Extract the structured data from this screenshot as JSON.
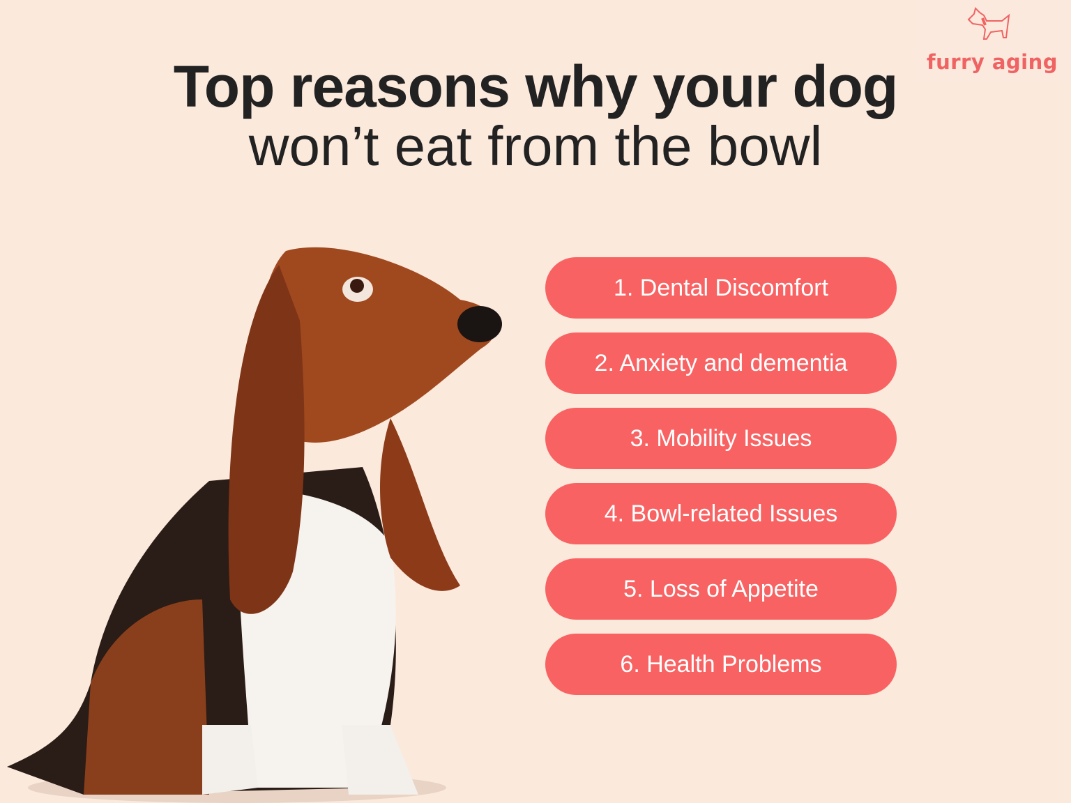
{
  "brand": {
    "name": "furry aging",
    "icon": "dog-outline-icon",
    "color": "#ef6363"
  },
  "title": {
    "line1": "Top reasons why your dog",
    "line2": "won’t eat from the bowl"
  },
  "reasons": [
    {
      "label": "1. Dental Discomfort"
    },
    {
      "label": "2. Anxiety and dementia"
    },
    {
      "label": "3. Mobility Issues"
    },
    {
      "label": "4. Bowl-related Issues"
    },
    {
      "label": "5. Loss of Appetite"
    },
    {
      "label": "6. Health Problems"
    }
  ],
  "colors": {
    "background": "#fbe9dc",
    "pill": "#f86262",
    "text": "#222222"
  }
}
